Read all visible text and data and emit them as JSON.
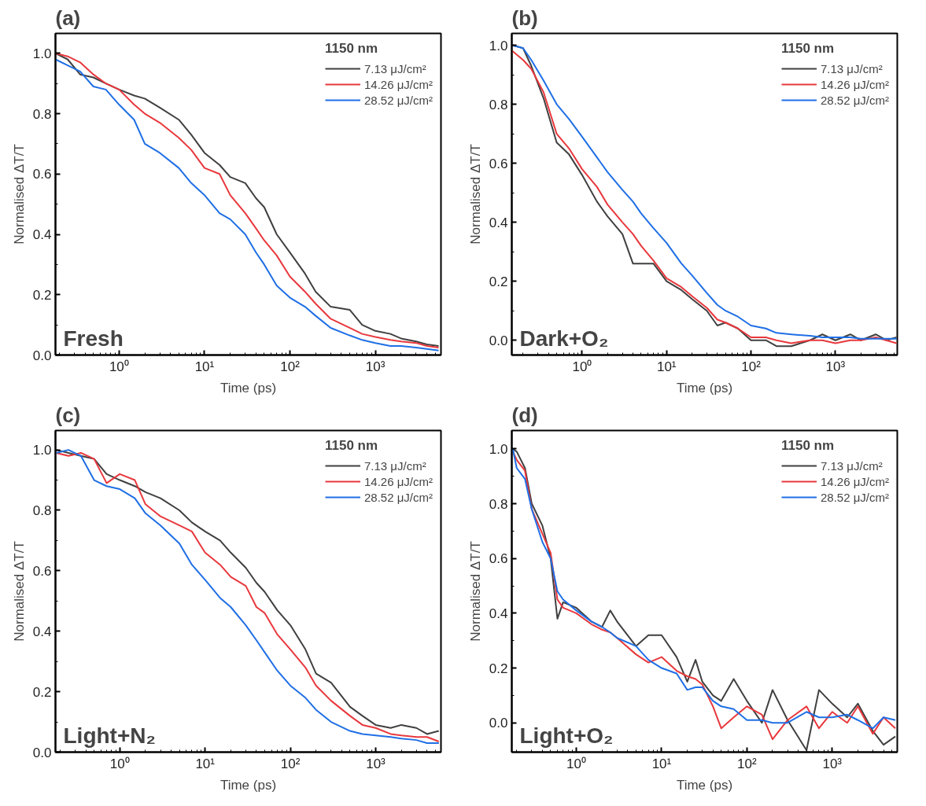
{
  "chart_data": [
    {
      "type": "line",
      "title": "(a)",
      "xlabel": "Time (ps)",
      "ylabel": "Normalised ΔT/T",
      "legend_title": "1150 nm",
      "legend": "top right",
      "log": "x",
      "grid": false,
      "xlim": [
        0.18,
        5860
      ],
      "ylim": [
        0,
        1.066
      ],
      "xticks": [
        {
          "value": 1,
          "label": "10⁰"
        },
        {
          "value": 10,
          "label": "10¹"
        },
        {
          "value": 100,
          "label": "10²"
        },
        {
          "value": 1000,
          "label": "10³"
        }
      ],
      "yticks": [
        {
          "value": 0,
          "label": "0.0"
        },
        {
          "value": 0.2,
          "label": "0.2"
        },
        {
          "value": 0.4,
          "label": "0.4"
        },
        {
          "value": 0.6,
          "label": "0.6"
        },
        {
          "value": 0.8,
          "label": "0.8"
        },
        {
          "value": 1,
          "label": "1.0"
        }
      ],
      "x": [
        0.18,
        0.25,
        0.35,
        0.5,
        0.7,
        1,
        1.5,
        2,
        3,
        5,
        7,
        10,
        15,
        20,
        30,
        40,
        50,
        70,
        100,
        150,
        200,
        300,
        500,
        700,
        1000,
        1500,
        2000,
        3000,
        4000,
        5500
      ],
      "series": [
        {
          "name": "7.13 μJ/cm²",
          "color": "#404040",
          "values": [
            1.0,
            0.98,
            0.93,
            0.92,
            0.9,
            0.88,
            0.86,
            0.85,
            0.82,
            0.78,
            0.73,
            0.67,
            0.63,
            0.59,
            0.57,
            0.52,
            0.49,
            0.4,
            0.34,
            0.27,
            0.21,
            0.16,
            0.15,
            0.1,
            0.08,
            0.07,
            0.055,
            0.045,
            0.035,
            0.03
          ]
        },
        {
          "name": "14.26 μJ/cm²",
          "color": "#e8383d",
          "values": [
            1.0,
            0.99,
            0.97,
            0.93,
            0.9,
            0.88,
            0.83,
            0.8,
            0.77,
            0.72,
            0.68,
            0.62,
            0.6,
            0.53,
            0.47,
            0.42,
            0.38,
            0.33,
            0.26,
            0.21,
            0.17,
            0.12,
            0.09,
            0.07,
            0.06,
            0.05,
            0.045,
            0.04,
            0.03,
            0.025
          ]
        },
        {
          "name": "28.52 μJ/cm²",
          "color": "#1f6fe5",
          "values": [
            0.98,
            0.96,
            0.94,
            0.89,
            0.88,
            0.83,
            0.78,
            0.7,
            0.67,
            0.62,
            0.57,
            0.53,
            0.47,
            0.45,
            0.4,
            0.34,
            0.3,
            0.23,
            0.19,
            0.16,
            0.13,
            0.09,
            0.065,
            0.05,
            0.04,
            0.03,
            0.03,
            0.025,
            0.02,
            0.015
          ]
        }
      ],
      "annotations": [
        "Fresh"
      ]
    },
    {
      "type": "line",
      "title": "(b)",
      "xlabel": "Time (ps)",
      "ylabel": "Normalised ΔT/T",
      "legend_title": "1150 nm",
      "legend": "top right",
      "log": "x",
      "grid": false,
      "xlim": [
        0.147,
        5400
      ],
      "ylim": [
        -0.05,
        1.04
      ],
      "xticks": [
        {
          "value": 1,
          "label": "10⁰"
        },
        {
          "value": 10,
          "label": "10¹"
        },
        {
          "value": 100,
          "label": "10²"
        },
        {
          "value": 1000,
          "label": "10³"
        }
      ],
      "yticks": [
        {
          "value": 0,
          "label": "0.0"
        },
        {
          "value": 0.2,
          "label": "0.2"
        },
        {
          "value": 0.4,
          "label": "0.4"
        },
        {
          "value": 0.6,
          "label": "0.6"
        },
        {
          "value": 0.8,
          "label": "0.8"
        },
        {
          "value": 1,
          "label": "1.0"
        }
      ],
      "x": [
        0.15,
        0.2,
        0.25,
        0.35,
        0.5,
        0.7,
        1,
        1.5,
        2,
        3,
        4,
        5,
        7,
        10,
        15,
        20,
        30,
        40,
        50,
        70,
        100,
        150,
        200,
        300,
        500,
        700,
        1000,
        1500,
        2000,
        3000,
        4000,
        5300
      ],
      "series": [
        {
          "name": "7.13 μJ/cm²",
          "color": "#404040",
          "values": [
            1.0,
            0.99,
            0.93,
            0.82,
            0.67,
            0.63,
            0.56,
            0.47,
            0.42,
            0.36,
            0.26,
            0.26,
            0.26,
            0.2,
            0.17,
            0.14,
            0.1,
            0.05,
            0.06,
            0.04,
            0.0,
            0.0,
            -0.02,
            -0.02,
            0.0,
            0.02,
            0.0,
            0.02,
            0.0,
            0.02,
            0.0,
            0.01
          ]
        },
        {
          "name": "14.26 μJ/cm²",
          "color": "#e8383d",
          "values": [
            0.98,
            0.95,
            0.92,
            0.84,
            0.7,
            0.65,
            0.58,
            0.52,
            0.46,
            0.4,
            0.36,
            0.32,
            0.27,
            0.21,
            0.18,
            0.15,
            0.11,
            0.07,
            0.06,
            0.04,
            0.01,
            0.01,
            0.0,
            -0.01,
            0.0,
            0.0,
            -0.01,
            0.0,
            0.0,
            0.01,
            0.0,
            -0.01
          ]
        },
        {
          "name": "28.52 μJ/cm²",
          "color": "#1f6fe5",
          "values": [
            1.0,
            0.99,
            0.95,
            0.88,
            0.8,
            0.75,
            0.69,
            0.62,
            0.57,
            0.51,
            0.47,
            0.43,
            0.38,
            0.33,
            0.26,
            0.22,
            0.16,
            0.12,
            0.1,
            0.08,
            0.05,
            0.04,
            0.025,
            0.02,
            0.015,
            0.01,
            0.01,
            0.01,
            0.005,
            0.005,
            0.005,
            0.005
          ]
        }
      ],
      "annotations": [
        "Dark+O₂"
      ]
    },
    {
      "type": "line",
      "title": "(c)",
      "xlabel": "Time (ps)",
      "ylabel": "Normalised ΔT/T",
      "legend_title": "1150 nm",
      "legend": "top right",
      "log": "x",
      "grid": false,
      "xlim": [
        0.176,
        5830
      ],
      "ylim": [
        0,
        1.064
      ],
      "xticks": [
        {
          "value": 1,
          "label": "10⁰"
        },
        {
          "value": 10,
          "label": "10¹"
        },
        {
          "value": 100,
          "label": "10²"
        },
        {
          "value": 1000,
          "label": "10³"
        }
      ],
      "yticks": [
        {
          "value": 0,
          "label": "0.0"
        },
        {
          "value": 0.2,
          "label": "0.2"
        },
        {
          "value": 0.4,
          "label": "0.4"
        },
        {
          "value": 0.6,
          "label": "0.6"
        },
        {
          "value": 0.8,
          "label": "0.8"
        },
        {
          "value": 1,
          "label": "1.0"
        }
      ],
      "x": [
        0.18,
        0.25,
        0.35,
        0.5,
        0.7,
        1,
        1.5,
        2,
        3,
        5,
        7,
        10,
        15,
        20,
        30,
        40,
        50,
        70,
        100,
        150,
        200,
        300,
        500,
        700,
        1000,
        1500,
        2000,
        3000,
        4000,
        5500
      ],
      "series": [
        {
          "name": "7.13 μJ/cm²",
          "color": "#404040",
          "values": [
            1.0,
            0.99,
            0.98,
            0.97,
            0.92,
            0.9,
            0.88,
            0.86,
            0.84,
            0.8,
            0.76,
            0.73,
            0.7,
            0.66,
            0.61,
            0.56,
            0.53,
            0.47,
            0.42,
            0.34,
            0.26,
            0.23,
            0.15,
            0.12,
            0.09,
            0.08,
            0.09,
            0.08,
            0.06,
            0.07
          ]
        },
        {
          "name": "14.26 μJ/cm²",
          "color": "#e8383d",
          "values": [
            0.99,
            0.98,
            0.99,
            0.97,
            0.89,
            0.92,
            0.9,
            0.82,
            0.78,
            0.75,
            0.73,
            0.66,
            0.62,
            0.58,
            0.55,
            0.48,
            0.46,
            0.39,
            0.34,
            0.28,
            0.22,
            0.17,
            0.12,
            0.09,
            0.08,
            0.06,
            0.055,
            0.05,
            0.05,
            0.035
          ]
        },
        {
          "name": "28.52 μJ/cm²",
          "color": "#1f6fe5",
          "values": [
            0.99,
            1.0,
            0.98,
            0.9,
            0.88,
            0.87,
            0.84,
            0.79,
            0.75,
            0.69,
            0.62,
            0.57,
            0.51,
            0.48,
            0.42,
            0.37,
            0.33,
            0.27,
            0.22,
            0.18,
            0.14,
            0.1,
            0.07,
            0.06,
            0.055,
            0.05,
            0.045,
            0.04,
            0.03,
            0.03
          ]
        }
      ],
      "annotations": [
        "Light+N₂"
      ]
    },
    {
      "type": "line",
      "title": "(d)",
      "xlabel": "Time (ps)",
      "ylabel": "Normalised ΔT/T",
      "legend_title": "1150 nm",
      "legend": "top right",
      "log": "x",
      "grid": false,
      "xlim": [
        0.175,
        5800
      ],
      "ylim": [
        -0.107,
        1.067
      ],
      "xticks": [
        {
          "value": 1,
          "label": "10⁰"
        },
        {
          "value": 10,
          "label": "10¹"
        },
        {
          "value": 100,
          "label": "10²"
        },
        {
          "value": 1000,
          "label": "10³"
        }
      ],
      "yticks": [
        {
          "value": 0,
          "label": "0.0"
        },
        {
          "value": 0.2,
          "label": "0.2"
        },
        {
          "value": 0.4,
          "label": "0.4"
        },
        {
          "value": 0.6,
          "label": "0.6"
        },
        {
          "value": 0.8,
          "label": "0.8"
        },
        {
          "value": 1,
          "label": "1.0"
        }
      ],
      "x": [
        0.18,
        0.2,
        0.25,
        0.3,
        0.4,
        0.5,
        0.6,
        0.7,
        1,
        1.5,
        2,
        2.5,
        3,
        5,
        7,
        10,
        15,
        20,
        25,
        30,
        40,
        50,
        70,
        100,
        150,
        200,
        300,
        500,
        700,
        1000,
        1500,
        2000,
        3000,
        4000,
        5500
      ],
      "series": [
        {
          "name": "7.13 μJ/cm²",
          "color": "#404040",
          "values": [
            1.0,
            0.99,
            0.93,
            0.8,
            0.72,
            0.6,
            0.38,
            0.44,
            0.42,
            0.37,
            0.35,
            0.41,
            0.37,
            0.28,
            0.32,
            0.32,
            0.24,
            0.15,
            0.23,
            0.15,
            0.1,
            0.08,
            0.16,
            0.08,
            0.0,
            0.12,
            0.01,
            -0.1,
            0.12,
            0.07,
            0.02,
            0.07,
            -0.03,
            -0.08,
            -0.05
          ]
        },
        {
          "name": "14.26 μJ/cm²",
          "color": "#e8383d",
          "values": [
            0.99,
            0.96,
            0.92,
            0.78,
            0.69,
            0.62,
            0.45,
            0.42,
            0.4,
            0.36,
            0.34,
            0.33,
            0.31,
            0.25,
            0.22,
            0.24,
            0.19,
            0.17,
            0.16,
            0.14,
            0.06,
            -0.02,
            0.02,
            0.06,
            0.03,
            -0.06,
            0.01,
            0.06,
            -0.02,
            0.04,
            0.0,
            0.06,
            -0.04,
            0.02,
            -0.02
          ]
        },
        {
          "name": "28.52 μJ/cm²",
          "color": "#1f6fe5",
          "values": [
            1.0,
            0.93,
            0.89,
            0.78,
            0.66,
            0.6,
            0.48,
            0.45,
            0.41,
            0.37,
            0.35,
            0.33,
            0.31,
            0.28,
            0.23,
            0.2,
            0.18,
            0.12,
            0.13,
            0.13,
            0.08,
            0.06,
            0.05,
            0.01,
            0.01,
            0.0,
            0.0,
            0.04,
            0.02,
            0.02,
            0.03,
            0.01,
            -0.02,
            0.02,
            0.01
          ]
        }
      ],
      "annotations": [
        "Light+O₂"
      ]
    }
  ]
}
